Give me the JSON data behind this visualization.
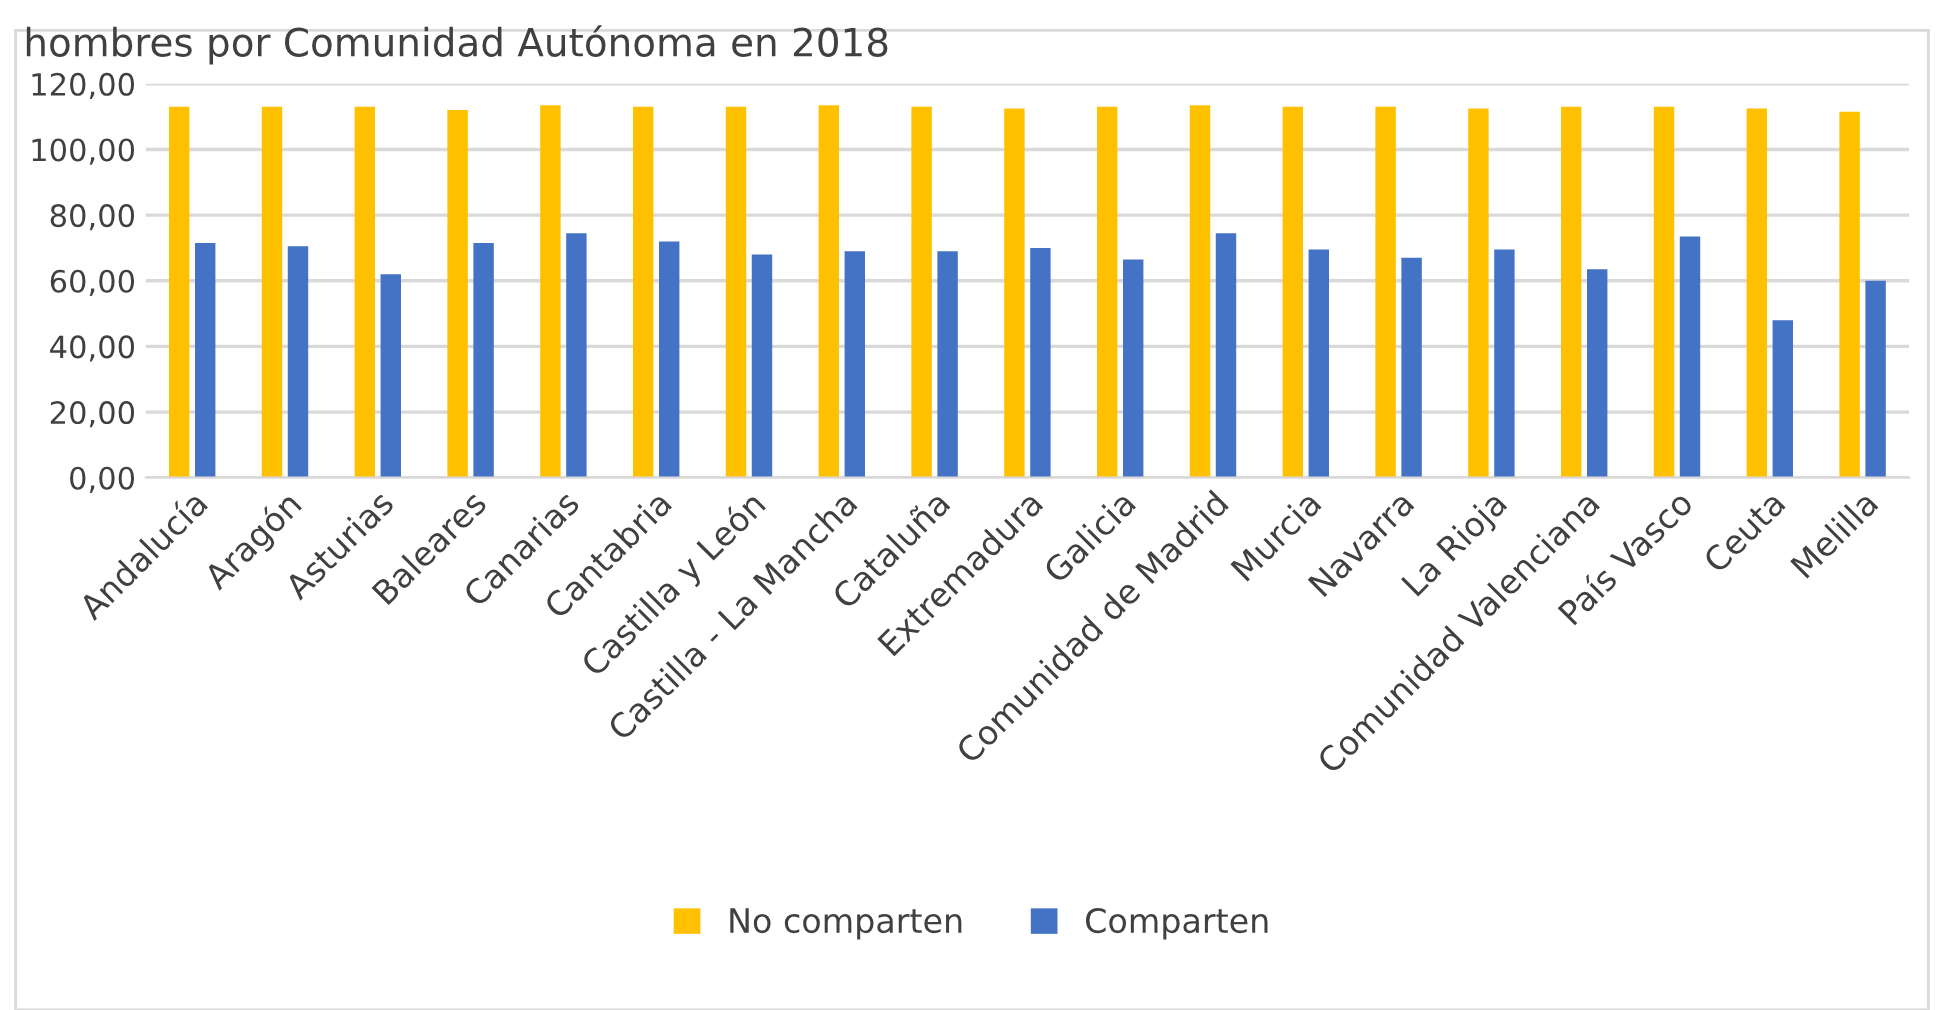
{
  "chart_data": {
    "type": "bar",
    "title": "hombres por Comunidad Autónoma en 2018",
    "categories": [
      "Andalucía",
      "Aragón",
      "Asturias",
      "Baleares",
      "Canarias",
      "Cantabria",
      "Castilla y León",
      "Castilla - La Mancha",
      "Cataluña",
      "Extremadura",
      "Galicia",
      "Comunidad de Madrid",
      "Murcia",
      "Navarra",
      "La Rioja",
      "Comunidad Valenciana",
      "País Vasco",
      "Ceuta",
      "Melilla"
    ],
    "series": [
      {
        "name": "No comparten",
        "color": "#ffc000",
        "values": [
          113,
          113,
          113,
          112,
          113.5,
          113,
          113,
          113.5,
          113,
          112.5,
          113,
          113.5,
          113,
          113,
          112.5,
          113,
          113,
          112.5,
          111.5
        ]
      },
      {
        "name": "Comparten",
        "color": "#4472c4",
        "values": [
          71.5,
          70.5,
          62,
          71.5,
          74.5,
          72,
          68,
          69,
          69,
          70,
          66.5,
          74.5,
          69.5,
          67,
          69.5,
          63.5,
          73.5,
          48,
          60
        ]
      }
    ],
    "ylim": [
      0,
      120
    ],
    "yticks": [
      {
        "value": 0,
        "label": "0,00"
      },
      {
        "value": 20,
        "label": "20,00"
      },
      {
        "value": 40,
        "label": "40,00"
      },
      {
        "value": 60,
        "label": "60,00"
      },
      {
        "value": 80,
        "label": "80,00"
      },
      {
        "value": 100,
        "label": "100,00"
      },
      {
        "value": 120,
        "label": "120,00"
      }
    ],
    "grid": "y",
    "legend": "bottom"
  }
}
